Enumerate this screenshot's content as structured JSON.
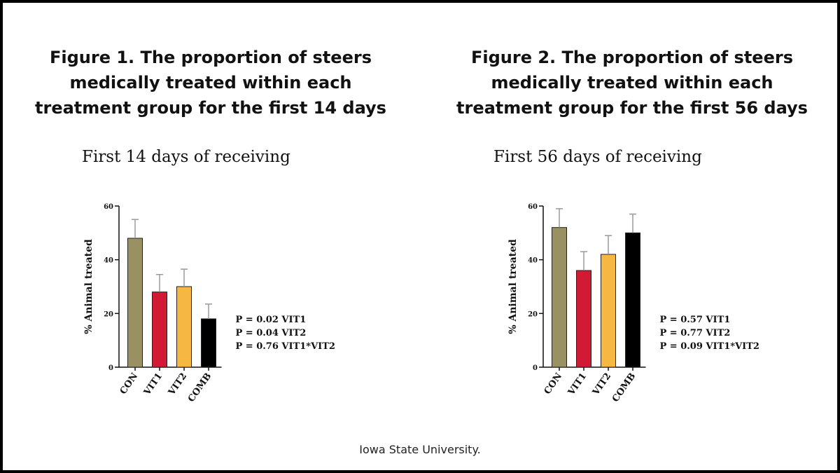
{
  "figures": [
    {
      "heading": [
        "Figure 1. The proportion of steers",
        "medically treated within each",
        "treatment group for the first 14 days"
      ],
      "chart_title": "First 14 days of receiving",
      "pvalues": [
        "P = 0.02 VIT1",
        "P = 0.04 VIT2",
        "P = 0.76 VIT1*VIT2"
      ]
    },
    {
      "heading": [
        "Figure 2. The proportion of steers",
        "medically treated within each",
        "treatment group for the first 56 days"
      ],
      "chart_title": "First 56 days of receiving",
      "pvalues": [
        "P = 0.57 VIT1",
        "P = 0.77 VIT2",
        "P = 0.09 VIT1*VIT2"
      ]
    }
  ],
  "footer": "Iowa State University.",
  "colors": {
    "CON": "#9a9163",
    "VIT1": "#d11a34",
    "VIT2": "#f6b843",
    "COMB": "#000000",
    "error": "#9a9a9a"
  },
  "chart_data": [
    {
      "type": "bar",
      "title": "First 14 days of receiving",
      "xlabel": "",
      "ylabel": "% Animal treated",
      "categories": [
        "CON",
        "VIT1",
        "VIT2",
        "COMB"
      ],
      "values": [
        48,
        28,
        30,
        18
      ],
      "errors": [
        7,
        6.5,
        6.5,
        5.5
      ],
      "ylim": [
        0,
        60
      ],
      "yticks": [
        0,
        20,
        40,
        60
      ],
      "grid": false
    },
    {
      "type": "bar",
      "title": "First 56 days of receiving",
      "xlabel": "",
      "ylabel": "% Animal treated",
      "categories": [
        "CON",
        "VIT1",
        "VIT2",
        "COMB"
      ],
      "values": [
        52,
        36,
        42,
        50
      ],
      "errors": [
        7,
        7,
        7,
        7
      ],
      "ylim": [
        0,
        60
      ],
      "yticks": [
        0,
        20,
        40,
        60
      ],
      "grid": false
    }
  ]
}
